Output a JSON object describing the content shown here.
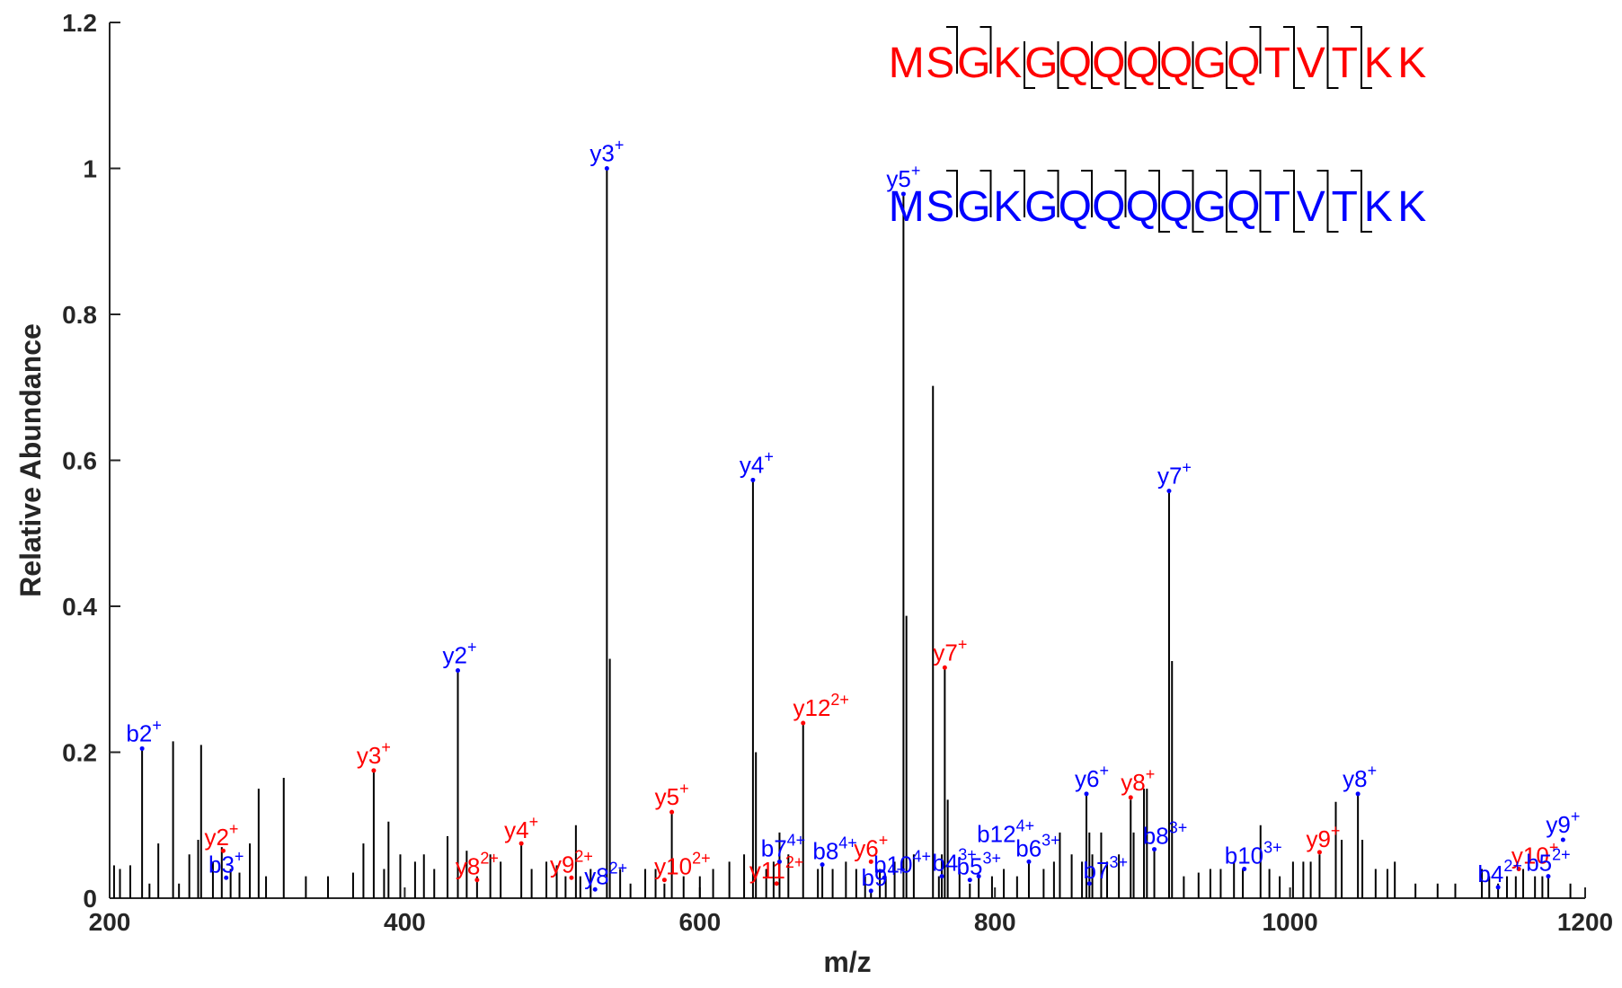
{
  "chart_data": {
    "type": "bar",
    "xlabel": "m/z",
    "ylabel": "Relative Abundance",
    "xlim": [
      200,
      1200
    ],
    "ylim": [
      0,
      1.2
    ],
    "x_ticks": [
      "200",
      "400",
      "600",
      "800",
      "1000",
      "1200"
    ],
    "y_ticks": [
      "0",
      "0.2",
      "0.4",
      "0.6",
      "0.8",
      "1",
      "1.2"
    ],
    "colors": {
      "axis": "#262626",
      "peak": "#000000",
      "series_red": "#ff0000",
      "series_blue": "#0000ff"
    },
    "peaks": [
      [
        203,
        0.045
      ],
      [
        207,
        0.04
      ],
      [
        214,
        0.045
      ],
      [
        222,
        0.205
      ],
      [
        227,
        0.02
      ],
      [
        233,
        0.075
      ],
      [
        243,
        0.215
      ],
      [
        247,
        0.02
      ],
      [
        254,
        0.06
      ],
      [
        260,
        0.08
      ],
      [
        262,
        0.21
      ],
      [
        270,
        0.05
      ],
      [
        276,
        0.07
      ],
      [
        282,
        0.04
      ],
      [
        288,
        0.035
      ],
      [
        295,
        0.075
      ],
      [
        301,
        0.15
      ],
      [
        306,
        0.03
      ],
      [
        318,
        0.165
      ],
      [
        333,
        0.03
      ],
      [
        348,
        0.03
      ],
      [
        365,
        0.035
      ],
      [
        372,
        0.075
      ],
      [
        379,
        0.175
      ],
      [
        386,
        0.04
      ],
      [
        389,
        0.105
      ],
      [
        397,
        0.06
      ],
      [
        407,
        0.05
      ],
      [
        413,
        0.06
      ],
      [
        420,
        0.04
      ],
      [
        429,
        0.085
      ],
      [
        436,
        0.312
      ],
      [
        442,
        0.065
      ],
      [
        449,
        0.03
      ],
      [
        458,
        0.06
      ],
      [
        465,
        0.05
      ],
      [
        479,
        0.075
      ],
      [
        486,
        0.04
      ],
      [
        496,
        0.05
      ],
      [
        503,
        0.045
      ],
      [
        509,
        0.03
      ],
      [
        516,
        0.1
      ],
      [
        519,
        0.03
      ],
      [
        526,
        0.04
      ],
      [
        537,
        1.0
      ],
      [
        539,
        0.328
      ],
      [
        546,
        0.04
      ],
      [
        553,
        0.02
      ],
      [
        563,
        0.04
      ],
      [
        570,
        0.04
      ],
      [
        576,
        0.02
      ],
      [
        581,
        0.118
      ],
      [
        589,
        0.03
      ],
      [
        600,
        0.03
      ],
      [
        609,
        0.04
      ],
      [
        620,
        0.05
      ],
      [
        630,
        0.06
      ],
      [
        636,
        0.573
      ],
      [
        638,
        0.2
      ],
      [
        645,
        0.04
      ],
      [
        650,
        0.05
      ],
      [
        654,
        0.09
      ],
      [
        660,
        0.06
      ],
      [
        670,
        0.24
      ],
      [
        680,
        0.04
      ],
      [
        683,
        0.046
      ],
      [
        690,
        0.04
      ],
      [
        699,
        0.05
      ],
      [
        706,
        0.04
      ],
      [
        712,
        0.03
      ],
      [
        716,
        0.01
      ],
      [
        722,
        0.04
      ],
      [
        726,
        0.03
      ],
      [
        732,
        0.05
      ],
      [
        738,
        0.965
      ],
      [
        740,
        0.387
      ],
      [
        745,
        0.06
      ],
      [
        758,
        0.702
      ],
      [
        762,
        0.03
      ],
      [
        764,
        0.06
      ],
      [
        766,
        0.316
      ],
      [
        768,
        0.135
      ],
      [
        776,
        0.04
      ],
      [
        783,
        0.02
      ],
      [
        789,
        0.03
      ],
      [
        798,
        0.03
      ],
      [
        806,
        0.04
      ],
      [
        815,
        0.03
      ],
      [
        823,
        0.05
      ],
      [
        833,
        0.04
      ],
      [
        840,
        0.05
      ],
      [
        844,
        0.09
      ],
      [
        852,
        0.06
      ],
      [
        859,
        0.05
      ],
      [
        862,
        0.143
      ],
      [
        864,
        0.09
      ],
      [
        866,
        0.06
      ],
      [
        872,
        0.09
      ],
      [
        876,
        0.05
      ],
      [
        884,
        0.06
      ],
      [
        892,
        0.135
      ],
      [
        894,
        0.09
      ],
      [
        901,
        0.15
      ],
      [
        903,
        0.15
      ],
      [
        908,
        0.067
      ],
      [
        918,
        0.558
      ],
      [
        920,
        0.325
      ],
      [
        928,
        0.03
      ],
      [
        938,
        0.035
      ],
      [
        946,
        0.04
      ],
      [
        953,
        0.04
      ],
      [
        962,
        0.05
      ],
      [
        968,
        0.04
      ],
      [
        980,
        0.1
      ],
      [
        986,
        0.04
      ],
      [
        993,
        0.03
      ],
      [
        1002,
        0.05
      ],
      [
        1009,
        0.05
      ],
      [
        1014,
        0.05
      ],
      [
        1020,
        0.06
      ],
      [
        1031,
        0.132
      ],
      [
        1035,
        0.08
      ],
      [
        1046,
        0.143
      ],
      [
        1049,
        0.08
      ],
      [
        1058,
        0.04
      ],
      [
        1066,
        0.04
      ],
      [
        1071,
        0.05
      ],
      [
        1085,
        0.02
      ],
      [
        1100,
        0.02
      ],
      [
        1112,
        0.02
      ],
      [
        1130,
        0.04
      ],
      [
        1135,
        0.03
      ],
      [
        1141,
        0.02
      ],
      [
        1147,
        0.03
      ],
      [
        1153,
        0.03
      ],
      [
        1158,
        0.04
      ],
      [
        1166,
        0.03
      ],
      [
        1171,
        0.03
      ],
      [
        1175,
        0.03
      ],
      [
        1190,
        0.02
      ]
    ],
    "annotations": [
      {
        "series": "red",
        "ion": "y2",
        "charge": "+",
        "mz": 277,
        "intensity": 0.065,
        "dx": -2,
        "dy": -6
      },
      {
        "series": "red",
        "ion": "y3",
        "charge": "+",
        "mz": 379,
        "intensity": 0.175,
        "dx": 0,
        "dy": -8
      },
      {
        "series": "red",
        "ion": "y8",
        "charge": "2+",
        "mz": 449,
        "intensity": 0.025,
        "dx": 0,
        "dy": -6
      },
      {
        "series": "red",
        "ion": "y4",
        "charge": "+",
        "mz": 479,
        "intensity": 0.075,
        "dx": 0,
        "dy": -6
      },
      {
        "series": "red",
        "ion": "y9",
        "charge": "2+",
        "mz": 513,
        "intensity": 0.028,
        "dx": 0,
        "dy": -6
      },
      {
        "series": "red",
        "ion": "y5",
        "charge": "+",
        "mz": 581,
        "intensity": 0.118,
        "dx": 0,
        "dy": -8
      },
      {
        "series": "red",
        "ion": "y10",
        "charge": "2+",
        "mz": 576,
        "intensity": 0.025,
        "dx": 20,
        "dy": -6
      },
      {
        "series": "red",
        "ion": "y11",
        "charge": "2+",
        "mz": 652,
        "intensity": 0.02,
        "dx": 0,
        "dy": -6
      },
      {
        "series": "red",
        "ion": "y12",
        "charge": "2+",
        "mz": 670,
        "intensity": 0.24,
        "dx": 20,
        "dy": -8
      },
      {
        "series": "red",
        "ion": "y6",
        "charge": "+",
        "mz": 716,
        "intensity": 0.05,
        "dx": 0,
        "dy": -6
      },
      {
        "series": "red",
        "ion": "y7",
        "charge": "+",
        "mz": 766,
        "intensity": 0.316,
        "dx": 6,
        "dy": -8
      },
      {
        "series": "red",
        "ion": "y8",
        "charge": "+",
        "mz": 892,
        "intensity": 0.138,
        "dx": 8,
        "dy": -8
      },
      {
        "series": "red",
        "ion": "y9",
        "charge": "+",
        "mz": 1020,
        "intensity": 0.063,
        "dx": 4,
        "dy": -6
      },
      {
        "series": "red",
        "ion": "y10",
        "charge": "+",
        "mz": 1155,
        "intensity": 0.04,
        "dx": 18,
        "dy": -6
      },
      {
        "series": "blue",
        "ion": "b2",
        "charge": "+",
        "mz": 222,
        "intensity": 0.205,
        "dx": 2,
        "dy": -8
      },
      {
        "series": "blue",
        "ion": "b3",
        "charge": "+",
        "mz": 279,
        "intensity": 0.028,
        "dx": 0,
        "dy": -6
      },
      {
        "series": "blue",
        "ion": "y2",
        "charge": "+",
        "mz": 436,
        "intensity": 0.312,
        "dx": 2,
        "dy": -8
      },
      {
        "series": "blue",
        "ion": "y8",
        "charge": "2+",
        "mz": 529,
        "intensity": 0.012,
        "dx": 12,
        "dy": -6
      },
      {
        "series": "blue",
        "ion": "y3",
        "charge": "+",
        "mz": 537,
        "intensity": 1.0,
        "dx": 0,
        "dy": -8
      },
      {
        "series": "blue",
        "ion": "y4",
        "charge": "+",
        "mz": 636,
        "intensity": 0.573,
        "dx": 4,
        "dy": -8
      },
      {
        "series": "blue",
        "ion": "b7",
        "charge": "4+",
        "mz": 654,
        "intensity": 0.05,
        "dx": 4,
        "dy": -6
      },
      {
        "series": "blue",
        "ion": "b8",
        "charge": "4+",
        "mz": 683,
        "intensity": 0.046,
        "dx": 14,
        "dy": -6
      },
      {
        "series": "blue",
        "ion": "b9",
        "charge": "4+",
        "mz": 716,
        "intensity": 0.01,
        "dx": 14,
        "dy": -6
      },
      {
        "series": "blue",
        "ion": "b10",
        "charge": "4+",
        "mz": 725,
        "intensity": 0.028,
        "dx": 20,
        "dy": -6
      },
      {
        "series": "blue",
        "ion": "y5",
        "charge": "+",
        "mz": 738,
        "intensity": 0.965,
        "dx": 0,
        "dy": -8
      },
      {
        "series": "blue",
        "ion": "b4",
        "charge": "3+",
        "mz": 764,
        "intensity": 0.03,
        "dx": 14,
        "dy": -6
      },
      {
        "series": "blue",
        "ion": "b5",
        "charge": "3+",
        "mz": 783,
        "intensity": 0.025,
        "dx": 10,
        "dy": -6
      },
      {
        "series": "blue",
        "ion": "b12",
        "charge": "4+",
        "mz": 789,
        "intensity": 0.03,
        "dx": 30,
        "dy": -38
      },
      {
        "series": "blue",
        "ion": "b6",
        "charge": "3+",
        "mz": 823,
        "intensity": 0.05,
        "dx": 10,
        "dy": -6
      },
      {
        "series": "blue",
        "ion": "y6",
        "charge": "+",
        "mz": 862,
        "intensity": 0.143,
        "dx": 6,
        "dy": -8
      },
      {
        "series": "blue",
        "ion": "b7",
        "charge": "3+",
        "mz": 864,
        "intensity": 0.02,
        "dx": 18,
        "dy": -6
      },
      {
        "series": "blue",
        "ion": "b8",
        "charge": "3+",
        "mz": 908,
        "intensity": 0.067,
        "dx": 12,
        "dy": -6
      },
      {
        "series": "blue",
        "ion": "y7",
        "charge": "+",
        "mz": 918,
        "intensity": 0.558,
        "dx": 6,
        "dy": -8
      },
      {
        "series": "blue",
        "ion": "b10",
        "charge": "3+",
        "mz": 969,
        "intensity": 0.04,
        "dx": 10,
        "dy": -6
      },
      {
        "series": "blue",
        "ion": "y8",
        "charge": "+",
        "mz": 1046,
        "intensity": 0.143,
        "dx": 2,
        "dy": -8
      },
      {
        "series": "blue",
        "ion": "b4",
        "charge": "2+",
        "mz": 1141,
        "intensity": 0.015,
        "dx": 2,
        "dy": -6
      },
      {
        "series": "blue",
        "ion": "b5",
        "charge": "2+",
        "mz": 1175,
        "intensity": 0.03,
        "dx": 0,
        "dy": -6
      },
      {
        "series": "blue",
        "ion": "y9",
        "charge": "+",
        "mz": 1185,
        "intensity": 0.08,
        "dx": 0,
        "dy": -8
      }
    ],
    "sequences": [
      {
        "series": "red",
        "letters": [
          "M",
          "S",
          "G",
          "K",
          "G",
          "Q",
          "Q",
          "Q",
          "Q",
          "G",
          "Q",
          "T",
          "V",
          "T",
          "K",
          "K"
        ],
        "b_breaks": [
          2,
          3,
          11,
          12,
          13,
          14
        ],
        "y_breaks": [
          4,
          5,
          6,
          7,
          8,
          9,
          10,
          12,
          13,
          14
        ]
      },
      {
        "series": "blue",
        "letters": [
          "M",
          "S",
          "G",
          "K",
          "G",
          "Q",
          "Q",
          "Q",
          "Q",
          "G",
          "Q",
          "T",
          "V",
          "T",
          "K",
          "K"
        ],
        "b_breaks": [
          2,
          3,
          4,
          5,
          6,
          7,
          8,
          9,
          10,
          11,
          12,
          13,
          14
        ],
        "y_breaks": [
          8,
          9,
          10,
          11,
          12,
          13,
          14
        ]
      }
    ]
  }
}
